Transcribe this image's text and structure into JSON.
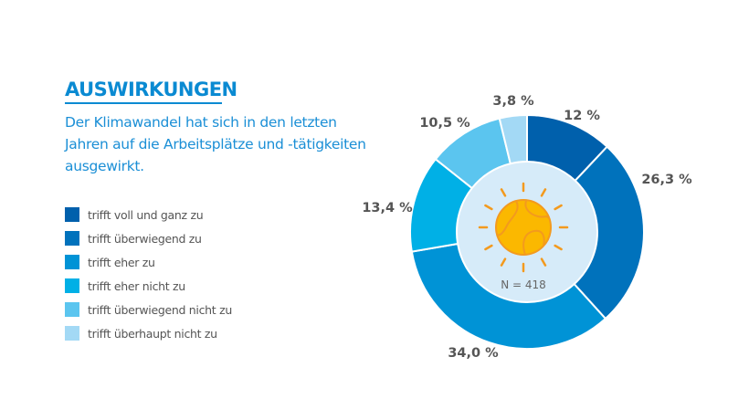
{
  "header": {
    "title": "AUSWIRKUNGEN",
    "subtitle": "Der Klimawandel hat sich in den letzten Jahren auf die Arbeitsplätze und -tätigkeiten ausgewirkt."
  },
  "chart_data": {
    "type": "pie",
    "variant": "donut",
    "center_label": "N = 418",
    "center_icon": "sun-globe-icon",
    "legend_position": "left",
    "categories": [
      "trifft voll und ganz zu",
      "trifft überwiegend zu",
      "trifft eher zu",
      "trifft eher nicht zu",
      "trifft überwiegend nicht zu",
      "trifft überhaupt nicht zu"
    ],
    "values": [
      12,
      26.3,
      34.0,
      13.4,
      10.5,
      3.8
    ],
    "data_labels": [
      "12 %",
      "26,3 %",
      "34,0 %",
      "13,4 %",
      "10,5 %",
      "3,8 %"
    ],
    "colors": [
      "#0060ac",
      "#0072bc",
      "#0093d6",
      "#00b0e6",
      "#5bc5ef",
      "#a3d9f5"
    ]
  }
}
